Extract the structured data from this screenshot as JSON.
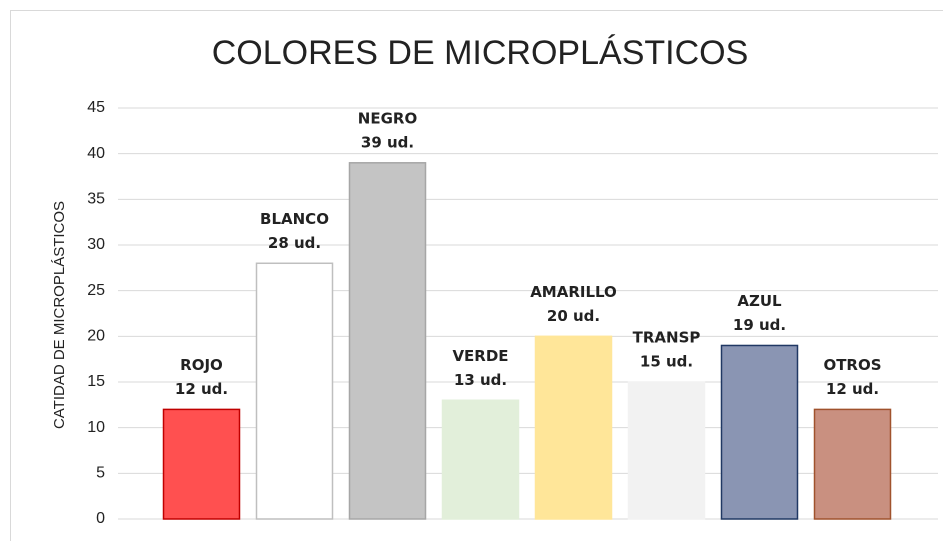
{
  "chart_data": {
    "type": "bar",
    "title": "COLORES DE MICROPLÁSTICOS",
    "y_label": "CATIDAD DE MICROPLÁSTICOS",
    "categories": [
      "ROJO",
      "BLANCO",
      "NEGRO",
      "VERDE",
      "AMARILLO",
      "TRANSP",
      "AZUL",
      "OTROS"
    ],
    "values": [
      12,
      28,
      39,
      13,
      20,
      15,
      19,
      12
    ],
    "value_labels": [
      "12 ud.",
      "28 ud.",
      "39 ud.",
      "13 ud.",
      "20 ud.",
      "15 ud.",
      "19 ud.",
      "12 ud."
    ],
    "colors": [
      "#ff5050",
      "#ffffff",
      "#c4c4c4",
      "#e2efda",
      "#ffe699",
      "#f2f2f2",
      "#8a95b3",
      "#c99080"
    ],
    "border_colors": [
      "#c00000",
      "#bfbfbf",
      "#a6a6a6",
      "#e2efda",
      "#ffe699",
      "#f2f2f2",
      "#203864",
      "#a0522d"
    ],
    "ylim": [
      0,
      45
    ],
    "yticks": [
      0,
      5,
      10,
      15,
      20,
      25,
      30,
      35,
      40,
      45
    ],
    "grid": true
  }
}
